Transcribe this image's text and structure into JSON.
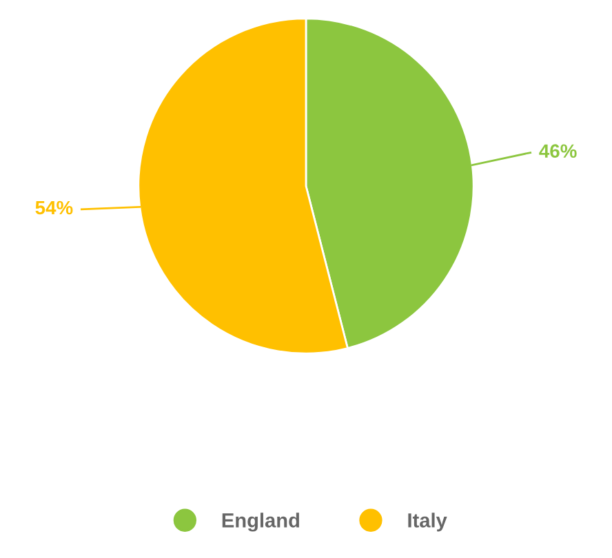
{
  "chart_data": {
    "type": "pie",
    "categories": [
      "England",
      "Italy"
    ],
    "values": [
      46,
      54
    ],
    "colors": [
      "#8cc63f",
      "#ffc000"
    ],
    "value_labels": [
      "46%",
      "54%"
    ],
    "legend": "bottom"
  }
}
